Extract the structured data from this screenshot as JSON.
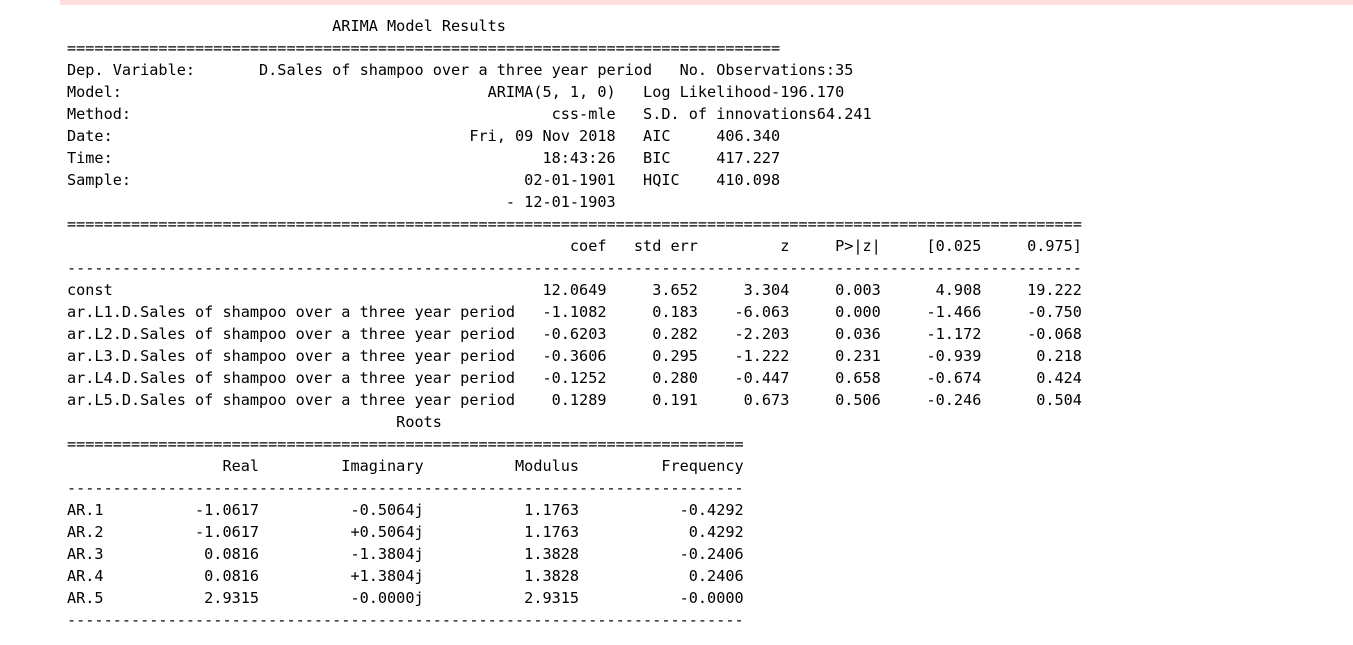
{
  "summary": {
    "title": "ARIMA Model Results",
    "header": [
      {
        "left_label": "Dep. Variable:",
        "left_value": "D.Sales of shampoo over a three year period",
        "right_label": "No. Observations:",
        "right_value": "35"
      },
      {
        "left_label": "Model:",
        "left_value": "ARIMA(5, 1, 0)",
        "right_label": "Log Likelihood",
        "right_value": "-196.170"
      },
      {
        "left_label": "Method:",
        "left_value": "css-mle",
        "right_label": "S.D. of innovations",
        "right_value": "64.241"
      },
      {
        "left_label": "Date:",
        "left_value": "Fri, 09 Nov 2018",
        "right_label": "AIC",
        "right_value": "406.340"
      },
      {
        "left_label": "Time:",
        "left_value": "18:43:26",
        "right_label": "BIC",
        "right_value": "417.227"
      },
      {
        "left_label": "Sample:",
        "left_value": "02-01-1901",
        "right_label": "HQIC",
        "right_value": "410.098"
      },
      {
        "left_label": "",
        "left_value": "- 12-01-1903",
        "right_label": "",
        "right_value": ""
      }
    ],
    "coef_columns": [
      "coef",
      "std err",
      "z",
      "P>|z|",
      "[0.025",
      "0.975]"
    ],
    "coef_rows": [
      [
        "const",
        "12.0649",
        "3.652",
        "3.304",
        "0.003",
        "4.908",
        "19.222"
      ],
      [
        "ar.L1.D.Sales of shampoo over a three year period",
        "-1.1082",
        "0.183",
        "-6.063",
        "0.000",
        "-1.466",
        "-0.750"
      ],
      [
        "ar.L2.D.Sales of shampoo over a three year period",
        "-0.6203",
        "0.282",
        "-2.203",
        "0.036",
        "-1.172",
        "-0.068"
      ],
      [
        "ar.L3.D.Sales of shampoo over a three year period",
        "-0.3606",
        "0.295",
        "-1.222",
        "0.231",
        "-0.939",
        "0.218"
      ],
      [
        "ar.L4.D.Sales of shampoo over a three year period",
        "-0.1252",
        "0.280",
        "-0.447",
        "0.658",
        "-0.674",
        "0.424"
      ],
      [
        "ar.L5.D.Sales of shampoo over a three year period",
        "0.1289",
        "0.191",
        "0.673",
        "0.506",
        "-0.246",
        "0.504"
      ]
    ],
    "roots_title": "Roots",
    "roots_columns": [
      "Real",
      "Imaginary",
      "Modulus",
      "Frequency"
    ],
    "roots_rows": [
      [
        "AR.1",
        "-1.0617",
        "-0.5064j",
        "1.1763",
        "-0.4292"
      ],
      [
        "AR.2",
        "-1.0617",
        "+0.5064j",
        "1.1763",
        "0.4292"
      ],
      [
        "AR.3",
        "0.0816",
        "-1.3804j",
        "1.3828",
        "-0.2406"
      ],
      [
        "AR.4",
        "0.0816",
        "+1.3804j",
        "1.3828",
        "0.2406"
      ],
      [
        "AR.5",
        "2.9315",
        "-0.0000j",
        "2.9315",
        "-0.0000"
      ]
    ]
  }
}
